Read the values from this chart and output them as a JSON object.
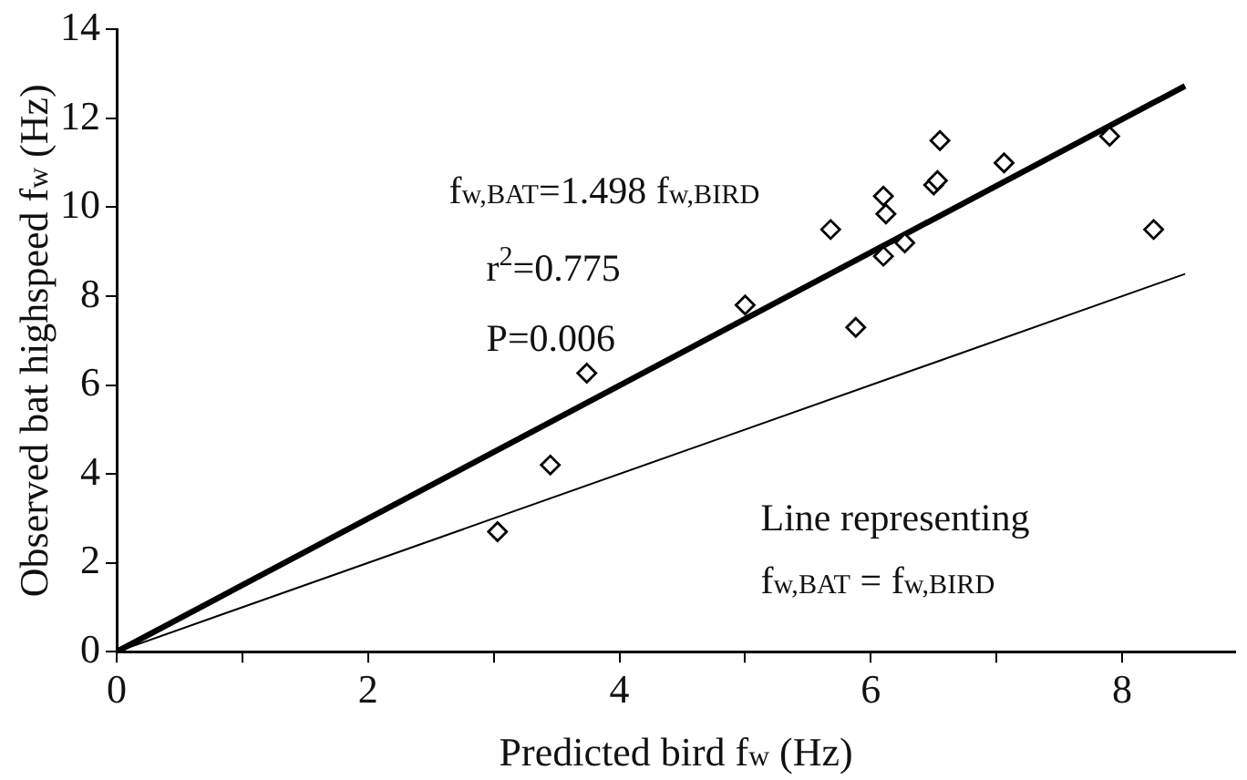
{
  "chart_data": {
    "type": "scatter",
    "xlabel": "Predicted bird f$_{w}$ (Hz)",
    "ylabel": "Observed bat highspeed f$_{w}$ (Hz)",
    "xlim": [
      0,
      8.9
    ],
    "xticks": [
      0,
      {
        "value": 1,
        "label": null
      },
      2,
      {
        "value": 3,
        "label": null
      },
      4,
      {
        "value": 5,
        "label": null
      },
      6,
      {
        "value": 7,
        "label": null
      },
      8
    ],
    "ylim": [
      0,
      14
    ],
    "yticks": [
      0,
      2,
      4,
      6,
      8,
      10,
      12,
      14
    ],
    "grid": false,
    "legend": false,
    "series": [
      {
        "color": "#000000",
        "marker": "diamond",
        "x": [
          3.03,
          3.45,
          3.74,
          5.0,
          5.68,
          5.88,
          6.1,
          6.1,
          6.12,
          6.27,
          6.5,
          6.53,
          6.55,
          7.06,
          7.9,
          8.25
        ],
        "values": [
          2.7,
          4.2,
          6.27,
          7.8,
          9.5,
          7.3,
          8.9,
          10.25,
          9.85,
          9.2,
          10.5,
          10.6,
          11.5,
          11.0,
          11.6,
          9.5
        ]
      },
      {
        "type": "line",
        "color": "#000000",
        "marker": "none",
        "x": [
          0,
          8.5
        ],
        "values": [
          0,
          12.73
        ]
      },
      {
        "type": "line",
        "color": "#000000",
        "marker": "none",
        "x": [
          0,
          8.5
        ],
        "values": [
          0,
          8.5
        ]
      }
    ],
    "annotations": [
      "f$_{w,BAT}$=1.498 f$_{w,BIRD}$",
      "r$^{2}$=0.775",
      "P=0.006",
      "Line representing",
      "f$_{w,BAT}$ = f$_{w,BIRD}$"
    ]
  }
}
